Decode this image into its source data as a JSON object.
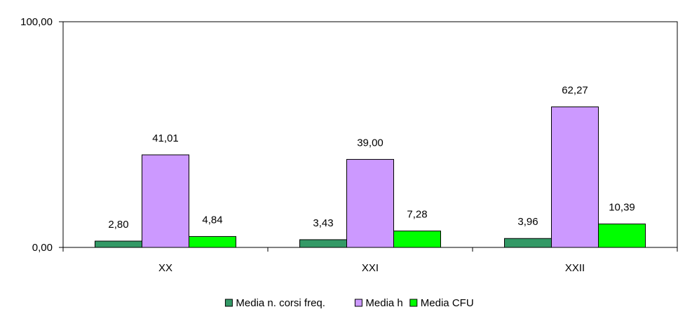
{
  "chart_data": {
    "type": "bar",
    "categories": [
      "XX",
      "XXI",
      "XXII"
    ],
    "series": [
      {
        "name": "Media n. corsi freq.",
        "values": [
          2.8,
          3.43,
          3.96
        ],
        "labels": [
          "2,80",
          "3,43",
          "3,96"
        ],
        "color": "#339966"
      },
      {
        "name": "Media h",
        "values": [
          41.01,
          39.0,
          62.27
        ],
        "labels": [
          "41,01",
          "39,00",
          "62,27"
        ],
        "color": "#cc99ff"
      },
      {
        "name": "Media CFU",
        "values": [
          4.84,
          7.28,
          10.39
        ],
        "labels": [
          "4,84",
          "7,28",
          "10,39"
        ],
        "color": "#00ff00"
      }
    ],
    "ylim": [
      0,
      100
    ],
    "yticks": [
      {
        "value": 0,
        "label": "0,00"
      },
      {
        "value": 100,
        "label": "100,00"
      }
    ],
    "title": "",
    "xlabel": "",
    "ylabel": "",
    "grid": false,
    "legend_position": "bottom"
  }
}
